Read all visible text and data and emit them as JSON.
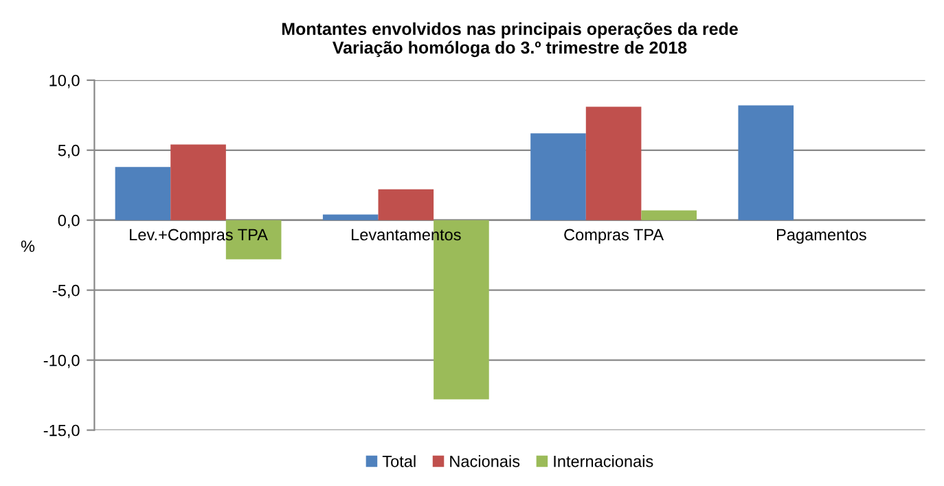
{
  "chart_data": {
    "type": "bar",
    "title": "Montantes envolvidos nas principais operações da rede\nVariação homóloga do 3.º trimestre de 2018",
    "ylabel": "%",
    "categories": [
      "Lev.+Compras TPA",
      "Levantamentos",
      "Compras TPA",
      "Pagamentos"
    ],
    "series": [
      {
        "name": "Total",
        "color": "#4f81bd",
        "values": [
          3.8,
          0.4,
          6.2,
          8.2
        ]
      },
      {
        "name": "Nacionais",
        "color": "#c0504d",
        "values": [
          5.4,
          2.2,
          8.1,
          null
        ]
      },
      {
        "name": "Internacionais",
        "color": "#9bbb59",
        "values": [
          -2.8,
          -12.8,
          0.7,
          null
        ]
      }
    ],
    "ylim": [
      -15,
      10
    ],
    "yticks": [
      {
        "value": -15,
        "label": "-15,0"
      },
      {
        "value": -10,
        "label": "-10,0"
      },
      {
        "value": -5,
        "label": "-5,0"
      },
      {
        "value": 0,
        "label": "0,0"
      },
      {
        "value": 5,
        "label": "5,0"
      },
      {
        "value": 10,
        "label": "10,0"
      }
    ],
    "grid": "y",
    "legend": "bottom"
  }
}
